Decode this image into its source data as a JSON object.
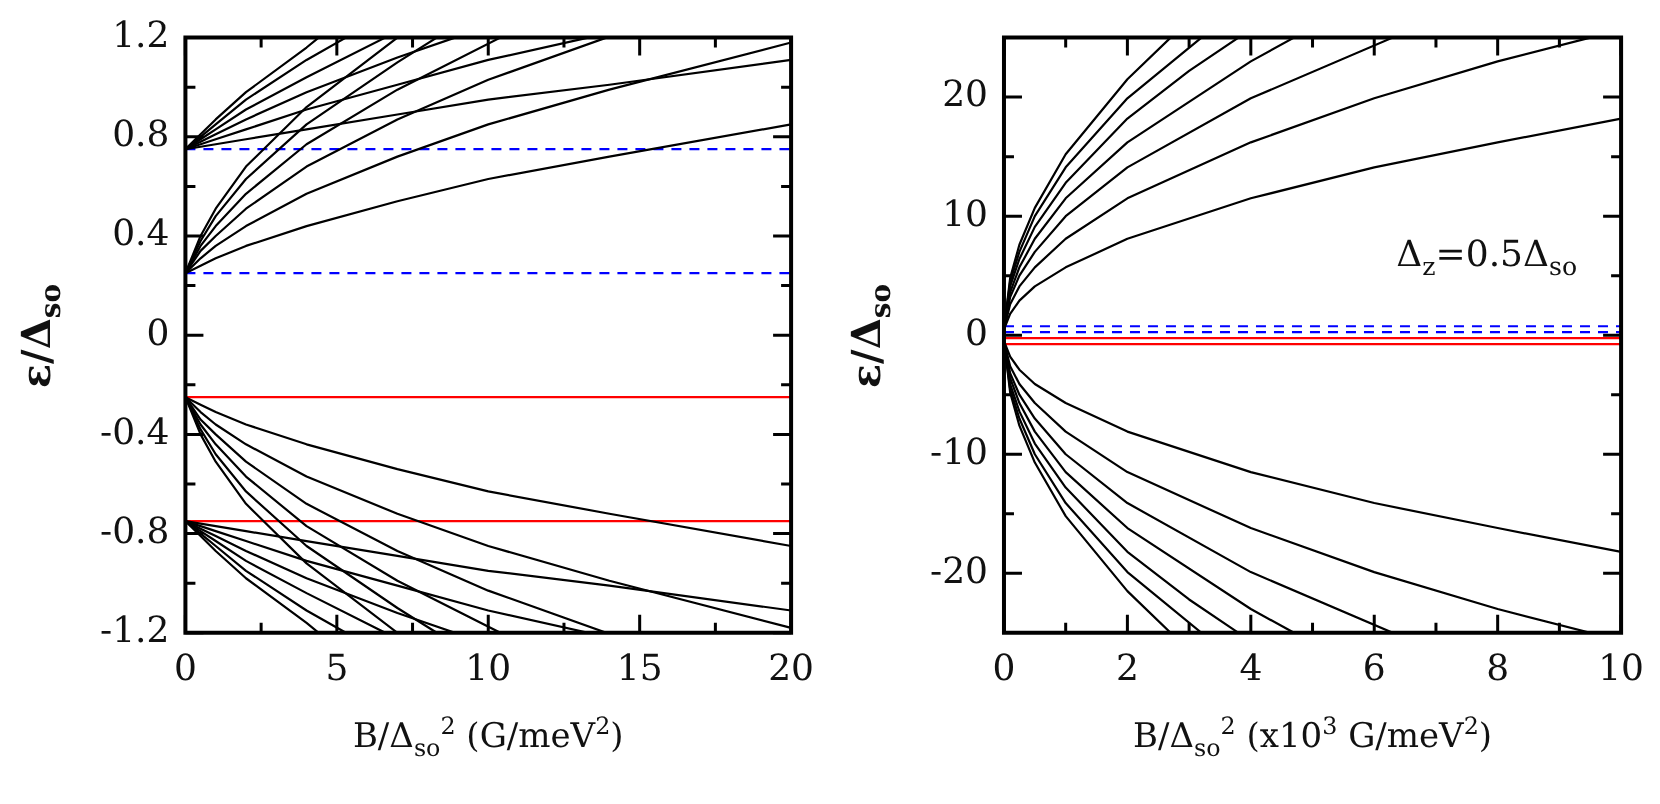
{
  "chart_data": [
    {
      "type": "line",
      "xlabel": "B/Δ$_{so}$$^{2}$ (G/meV$^{2}$)",
      "ylabel": "ε/Δ$_{so}$",
      "xlim": [
        0,
        20
      ],
      "xticks": [
        0,
        5,
        10,
        15,
        20
      ],
      "ylim": [
        -1.2,
        1.2
      ],
      "yticks": [
        -1.2,
        -0.8,
        -0.4,
        0,
        0.4,
        0.8,
        1.2
      ],
      "grid": false,
      "legend": false,
      "marker": "none",
      "line_style": "solid",
      "ref_lines": [
        {
          "axis": "y",
          "value": 0.75,
          "color": "#0000ff",
          "line_style": "dashed"
        },
        {
          "axis": "y",
          "value": 0.25,
          "color": "#0000ff",
          "line_style": "dashed"
        },
        {
          "axis": "y",
          "value": -0.25,
          "color": "#ff0000",
          "line_style": "solid"
        },
        {
          "axis": "y",
          "value": -0.75,
          "color": "#ff0000",
          "line_style": "solid"
        }
      ],
      "series": [
        {
          "color": "#000000",
          "x": [
            0,
            0.5,
            1,
            2,
            4,
            7,
            10,
            14,
            20
          ],
          "values": [
            0.25,
            0.28,
            0.31,
            0.36,
            0.44,
            0.54,
            0.63,
            0.72,
            0.85
          ]
        },
        {
          "color": "#000000",
          "x": [
            0,
            0.5,
            1,
            2,
            4,
            7,
            10,
            14,
            20
          ],
          "values": [
            0.25,
            0.31,
            0.36,
            0.44,
            0.57,
            0.72,
            0.85,
            0.99,
            1.18
          ]
        },
        {
          "color": "#000000",
          "x": [
            0,
            0.5,
            1,
            2,
            4,
            7,
            10,
            13.9
          ],
          "values": [
            0.25,
            0.34,
            0.4,
            0.51,
            0.68,
            0.87,
            1.03,
            1.2
          ]
        },
        {
          "color": "#000000",
          "x": [
            0,
            0.5,
            1,
            2,
            4,
            7,
            10.4
          ],
          "values": [
            0.25,
            0.36,
            0.44,
            0.57,
            0.77,
            0.99,
            1.2
          ]
        },
        {
          "color": "#000000",
          "x": [
            0,
            0.5,
            1,
            2,
            4,
            7,
            8.3
          ],
          "values": [
            0.25,
            0.38,
            0.48,
            0.63,
            0.85,
            1.1,
            1.2
          ]
        },
        {
          "color": "#000000",
          "x": [
            0,
            0.5,
            1,
            2,
            4,
            7
          ],
          "values": [
            0.25,
            0.4,
            0.51,
            0.68,
            0.92,
            1.2
          ]
        },
        {
          "color": "#000000",
          "x": [
            0,
            0.5,
            1,
            2,
            4,
            7,
            10,
            14,
            20
          ],
          "values": [
            0.75,
            0.76,
            0.77,
            0.79,
            0.83,
            0.89,
            0.95,
            1.01,
            1.11
          ]
        },
        {
          "color": "#000000",
          "x": [
            0,
            0.5,
            1,
            2,
            4,
            7,
            10,
            13.3
          ],
          "values": [
            0.75,
            0.77,
            0.79,
            0.83,
            0.91,
            1.01,
            1.11,
            1.2
          ]
        },
        {
          "color": "#000000",
          "x": [
            0,
            0.5,
            1,
            2,
            4,
            7,
            8.9
          ],
          "values": [
            0.75,
            0.78,
            0.81,
            0.87,
            0.98,
            1.12,
            1.2
          ]
        },
        {
          "color": "#000000",
          "x": [
            0,
            0.5,
            1,
            2,
            4,
            6.6
          ],
          "values": [
            0.75,
            0.79,
            0.83,
            0.91,
            1.04,
            1.2
          ]
        },
        {
          "color": "#000000",
          "x": [
            0,
            0.5,
            1,
            2,
            4,
            5.3
          ],
          "values": [
            0.75,
            0.8,
            0.85,
            0.95,
            1.11,
            1.2
          ]
        },
        {
          "color": "#000000",
          "x": [
            0,
            0.5,
            1,
            2,
            4,
            4.4
          ],
          "values": [
            0.75,
            0.81,
            0.87,
            0.98,
            1.16,
            1.2
          ]
        },
        {
          "color": "#000000",
          "x": [
            0,
            0.5,
            1,
            2,
            4,
            7,
            10,
            14,
            20
          ],
          "values": [
            -0.25,
            -0.28,
            -0.31,
            -0.36,
            -0.44,
            -0.54,
            -0.63,
            -0.72,
            -0.85
          ]
        },
        {
          "color": "#000000",
          "x": [
            0,
            0.5,
            1,
            2,
            4,
            7,
            10,
            14,
            20
          ],
          "values": [
            -0.25,
            -0.31,
            -0.36,
            -0.44,
            -0.57,
            -0.72,
            -0.85,
            -0.99,
            -1.18
          ]
        },
        {
          "color": "#000000",
          "x": [
            0,
            0.5,
            1,
            2,
            4,
            7,
            10,
            13.9
          ],
          "values": [
            -0.25,
            -0.34,
            -0.4,
            -0.51,
            -0.68,
            -0.87,
            -1.03,
            -1.2
          ]
        },
        {
          "color": "#000000",
          "x": [
            0,
            0.5,
            1,
            2,
            4,
            7,
            10.4
          ],
          "values": [
            -0.25,
            -0.36,
            -0.44,
            -0.57,
            -0.77,
            -0.99,
            -1.2
          ]
        },
        {
          "color": "#000000",
          "x": [
            0,
            0.5,
            1,
            2,
            4,
            7,
            8.3
          ],
          "values": [
            -0.25,
            -0.38,
            -0.48,
            -0.63,
            -0.85,
            -1.1,
            -1.2
          ]
        },
        {
          "color": "#000000",
          "x": [
            0,
            0.5,
            1,
            2,
            4,
            7
          ],
          "values": [
            -0.25,
            -0.4,
            -0.51,
            -0.68,
            -0.92,
            -1.2
          ]
        },
        {
          "color": "#000000",
          "x": [
            0,
            0.5,
            1,
            2,
            4,
            7,
            10,
            14,
            20
          ],
          "values": [
            -0.75,
            -0.76,
            -0.77,
            -0.79,
            -0.83,
            -0.89,
            -0.95,
            -1.01,
            -1.11
          ]
        },
        {
          "color": "#000000",
          "x": [
            0,
            0.5,
            1,
            2,
            4,
            7,
            10,
            13.3
          ],
          "values": [
            -0.75,
            -0.77,
            -0.79,
            -0.83,
            -0.91,
            -1.01,
            -1.11,
            -1.2
          ]
        },
        {
          "color": "#000000",
          "x": [
            0,
            0.5,
            1,
            2,
            4,
            7,
            8.9
          ],
          "values": [
            -0.75,
            -0.78,
            -0.81,
            -0.87,
            -0.98,
            -1.12,
            -1.2
          ]
        },
        {
          "color": "#000000",
          "x": [
            0,
            0.5,
            1,
            2,
            4,
            6.6
          ],
          "values": [
            -0.75,
            -0.79,
            -0.83,
            -0.91,
            -1.04,
            -1.2
          ]
        },
        {
          "color": "#000000",
          "x": [
            0,
            0.5,
            1,
            2,
            4,
            5.3
          ],
          "values": [
            -0.75,
            -0.8,
            -0.85,
            -0.95,
            -1.11,
            -1.2
          ]
        },
        {
          "color": "#000000",
          "x": [
            0,
            0.5,
            1,
            2,
            4,
            4.4
          ],
          "values": [
            -0.75,
            -0.81,
            -0.87,
            -0.98,
            -1.16,
            -1.2
          ]
        }
      ]
    },
    {
      "type": "line",
      "xlabel": "B/Δ$_{so}$$^{2}$ (x10$^{3}$ G/meV$^{2}$)",
      "ylabel": "ε/Δ$_{so}$",
      "annotations": [
        "Δ$_{z}$=0.5Δ$_{so}$"
      ],
      "xlim": [
        0,
        10
      ],
      "xticks": [
        0,
        2,
        4,
        6,
        8,
        10
      ],
      "ylim": [
        -25,
        25
      ],
      "yticks": [
        -20,
        -10,
        0,
        10,
        20
      ],
      "grid": false,
      "legend": false,
      "marker": "none",
      "line_style": "solid",
      "ref_lines": [
        {
          "axis": "y",
          "value": 0.75,
          "color": "#0000ff",
          "line_style": "dashed"
        },
        {
          "axis": "y",
          "value": 0.25,
          "color": "#0000ff",
          "line_style": "dashed"
        },
        {
          "axis": "y",
          "value": -0.25,
          "color": "#ff0000",
          "line_style": "solid"
        },
        {
          "axis": "y",
          "value": -0.75,
          "color": "#ff0000",
          "line_style": "solid"
        }
      ],
      "series": [
        {
          "color": "#000000",
          "x": [
            0,
            0.1,
            0.25,
            0.5,
            1,
            2,
            4,
            6,
            8,
            10
          ],
          "values": [
            0.5,
            1.8,
            2.9,
            4.1,
            5.7,
            8.1,
            11.5,
            14.1,
            16.2,
            18.2
          ]
        },
        {
          "color": "#000000",
          "x": [
            0,
            0.1,
            0.25,
            0.5,
            1,
            2,
            4,
            6,
            8,
            9.5
          ],
          "values": [
            0.5,
            2.6,
            4.1,
            5.7,
            8.1,
            11.5,
            16.2,
            19.9,
            23,
            25
          ]
        },
        {
          "color": "#000000",
          "x": [
            0,
            0.1,
            0.25,
            0.5,
            1,
            2,
            4,
            6.3
          ],
          "values": [
            0.5,
            3.2,
            5,
            7,
            10,
            14.1,
            19.9,
            25
          ]
        },
        {
          "color": "#000000",
          "x": [
            0,
            0.1,
            0.25,
            0.5,
            1,
            2,
            4,
            4.7
          ],
          "values": [
            0.5,
            3.6,
            5.7,
            8.1,
            11.5,
            16.2,
            23,
            25
          ]
        },
        {
          "color": "#000000",
          "x": [
            0,
            0.1,
            0.25,
            0.5,
            1,
            2,
            3,
            3.8
          ],
          "values": [
            0.5,
            4.1,
            6.4,
            9.1,
            12.8,
            18.2,
            22.2,
            25
          ]
        },
        {
          "color": "#000000",
          "x": [
            0,
            0.1,
            0.25,
            0.5,
            1,
            2,
            3.2
          ],
          "values": [
            0.5,
            4.5,
            7,
            10,
            14.1,
            19.9,
            25
          ]
        },
        {
          "color": "#000000",
          "x": [
            0,
            0.1,
            0.25,
            0.5,
            1,
            2,
            2.7
          ],
          "values": [
            0.5,
            4.8,
            7.6,
            10.7,
            15.2,
            21.5,
            25
          ]
        },
        {
          "color": "#000000",
          "x": [
            0,
            0.1,
            0.25,
            0.5,
            1,
            2,
            4,
            6,
            8,
            10
          ],
          "values": [
            -0.5,
            -1.8,
            -2.9,
            -4.1,
            -5.7,
            -8.1,
            -11.5,
            -14.1,
            -16.2,
            -18.2
          ]
        },
        {
          "color": "#000000",
          "x": [
            0,
            0.1,
            0.25,
            0.5,
            1,
            2,
            4,
            6,
            8,
            9.5
          ],
          "values": [
            -0.5,
            -2.6,
            -4.1,
            -5.7,
            -8.1,
            -11.5,
            -16.2,
            -19.9,
            -23,
            -25
          ]
        },
        {
          "color": "#000000",
          "x": [
            0,
            0.1,
            0.25,
            0.5,
            1,
            2,
            4,
            6.3
          ],
          "values": [
            -0.5,
            -3.2,
            -5,
            -7,
            -10,
            -14.1,
            -19.9,
            -25
          ]
        },
        {
          "color": "#000000",
          "x": [
            0,
            0.1,
            0.25,
            0.5,
            1,
            2,
            4,
            4.7
          ],
          "values": [
            -0.5,
            -3.6,
            -5.7,
            -8.1,
            -11.5,
            -16.2,
            -23,
            -25
          ]
        },
        {
          "color": "#000000",
          "x": [
            0,
            0.1,
            0.25,
            0.5,
            1,
            2,
            3,
            3.8
          ],
          "values": [
            -0.5,
            -4.1,
            -6.4,
            -9.1,
            -12.8,
            -18.2,
            -22.2,
            -25
          ]
        },
        {
          "color": "#000000",
          "x": [
            0,
            0.1,
            0.25,
            0.5,
            1,
            2,
            3.2
          ],
          "values": [
            -0.5,
            -4.5,
            -7,
            -10,
            -14.1,
            -19.9,
            -25
          ]
        },
        {
          "color": "#000000",
          "x": [
            0,
            0.1,
            0.25,
            0.5,
            1,
            2,
            2.7
          ],
          "values": [
            -0.5,
            -4.8,
            -7.6,
            -10.7,
            -15.2,
            -21.5,
            -25
          ]
        }
      ]
    }
  ]
}
